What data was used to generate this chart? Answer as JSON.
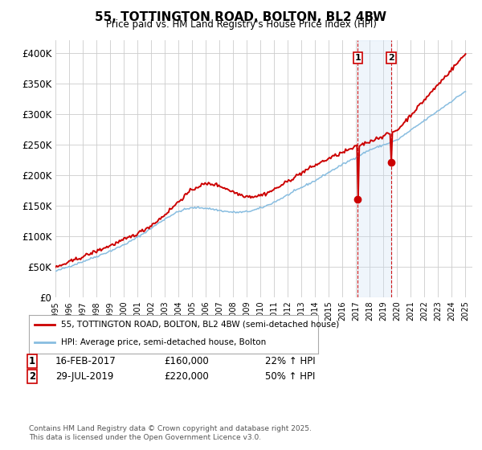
{
  "title": "55, TOTTINGTON ROAD, BOLTON, BL2 4BW",
  "subtitle": "Price paid vs. HM Land Registry's House Price Index (HPI)",
  "ylim": [
    0,
    420000
  ],
  "yticks": [
    0,
    50000,
    100000,
    150000,
    200000,
    250000,
    300000,
    350000,
    400000
  ],
  "ytick_labels": [
    "£0",
    "£50K",
    "£100K",
    "£150K",
    "£200K",
    "£250K",
    "£300K",
    "£350K",
    "£400K"
  ],
  "hpi_color": "#88bde0",
  "price_color": "#cc0000",
  "marker_color": "#cc0000",
  "vline_color": "#cc0000",
  "shade_color": "#cce0f5",
  "annotation1_date": "16-FEB-2017",
  "annotation1_price": 160000,
  "annotation1_hpi_pct": "22%",
  "annotation1_year": 2017.12,
  "annotation2_date": "29-JUL-2019",
  "annotation2_price": 220000,
  "annotation2_hpi_pct": "50%",
  "annotation2_year": 2019.58,
  "x_start_year": 1995,
  "x_end_year": 2025,
  "legend_label1": "55, TOTTINGTON ROAD, BOLTON, BL2 4BW (semi-detached house)",
  "legend_label2": "HPI: Average price, semi-detached house, Bolton",
  "footnote": "Contains HM Land Registry data © Crown copyright and database right 2025.\nThis data is licensed under the Open Government Licence v3.0.",
  "bg_color": "#ffffff",
  "grid_color": "#cccccc"
}
